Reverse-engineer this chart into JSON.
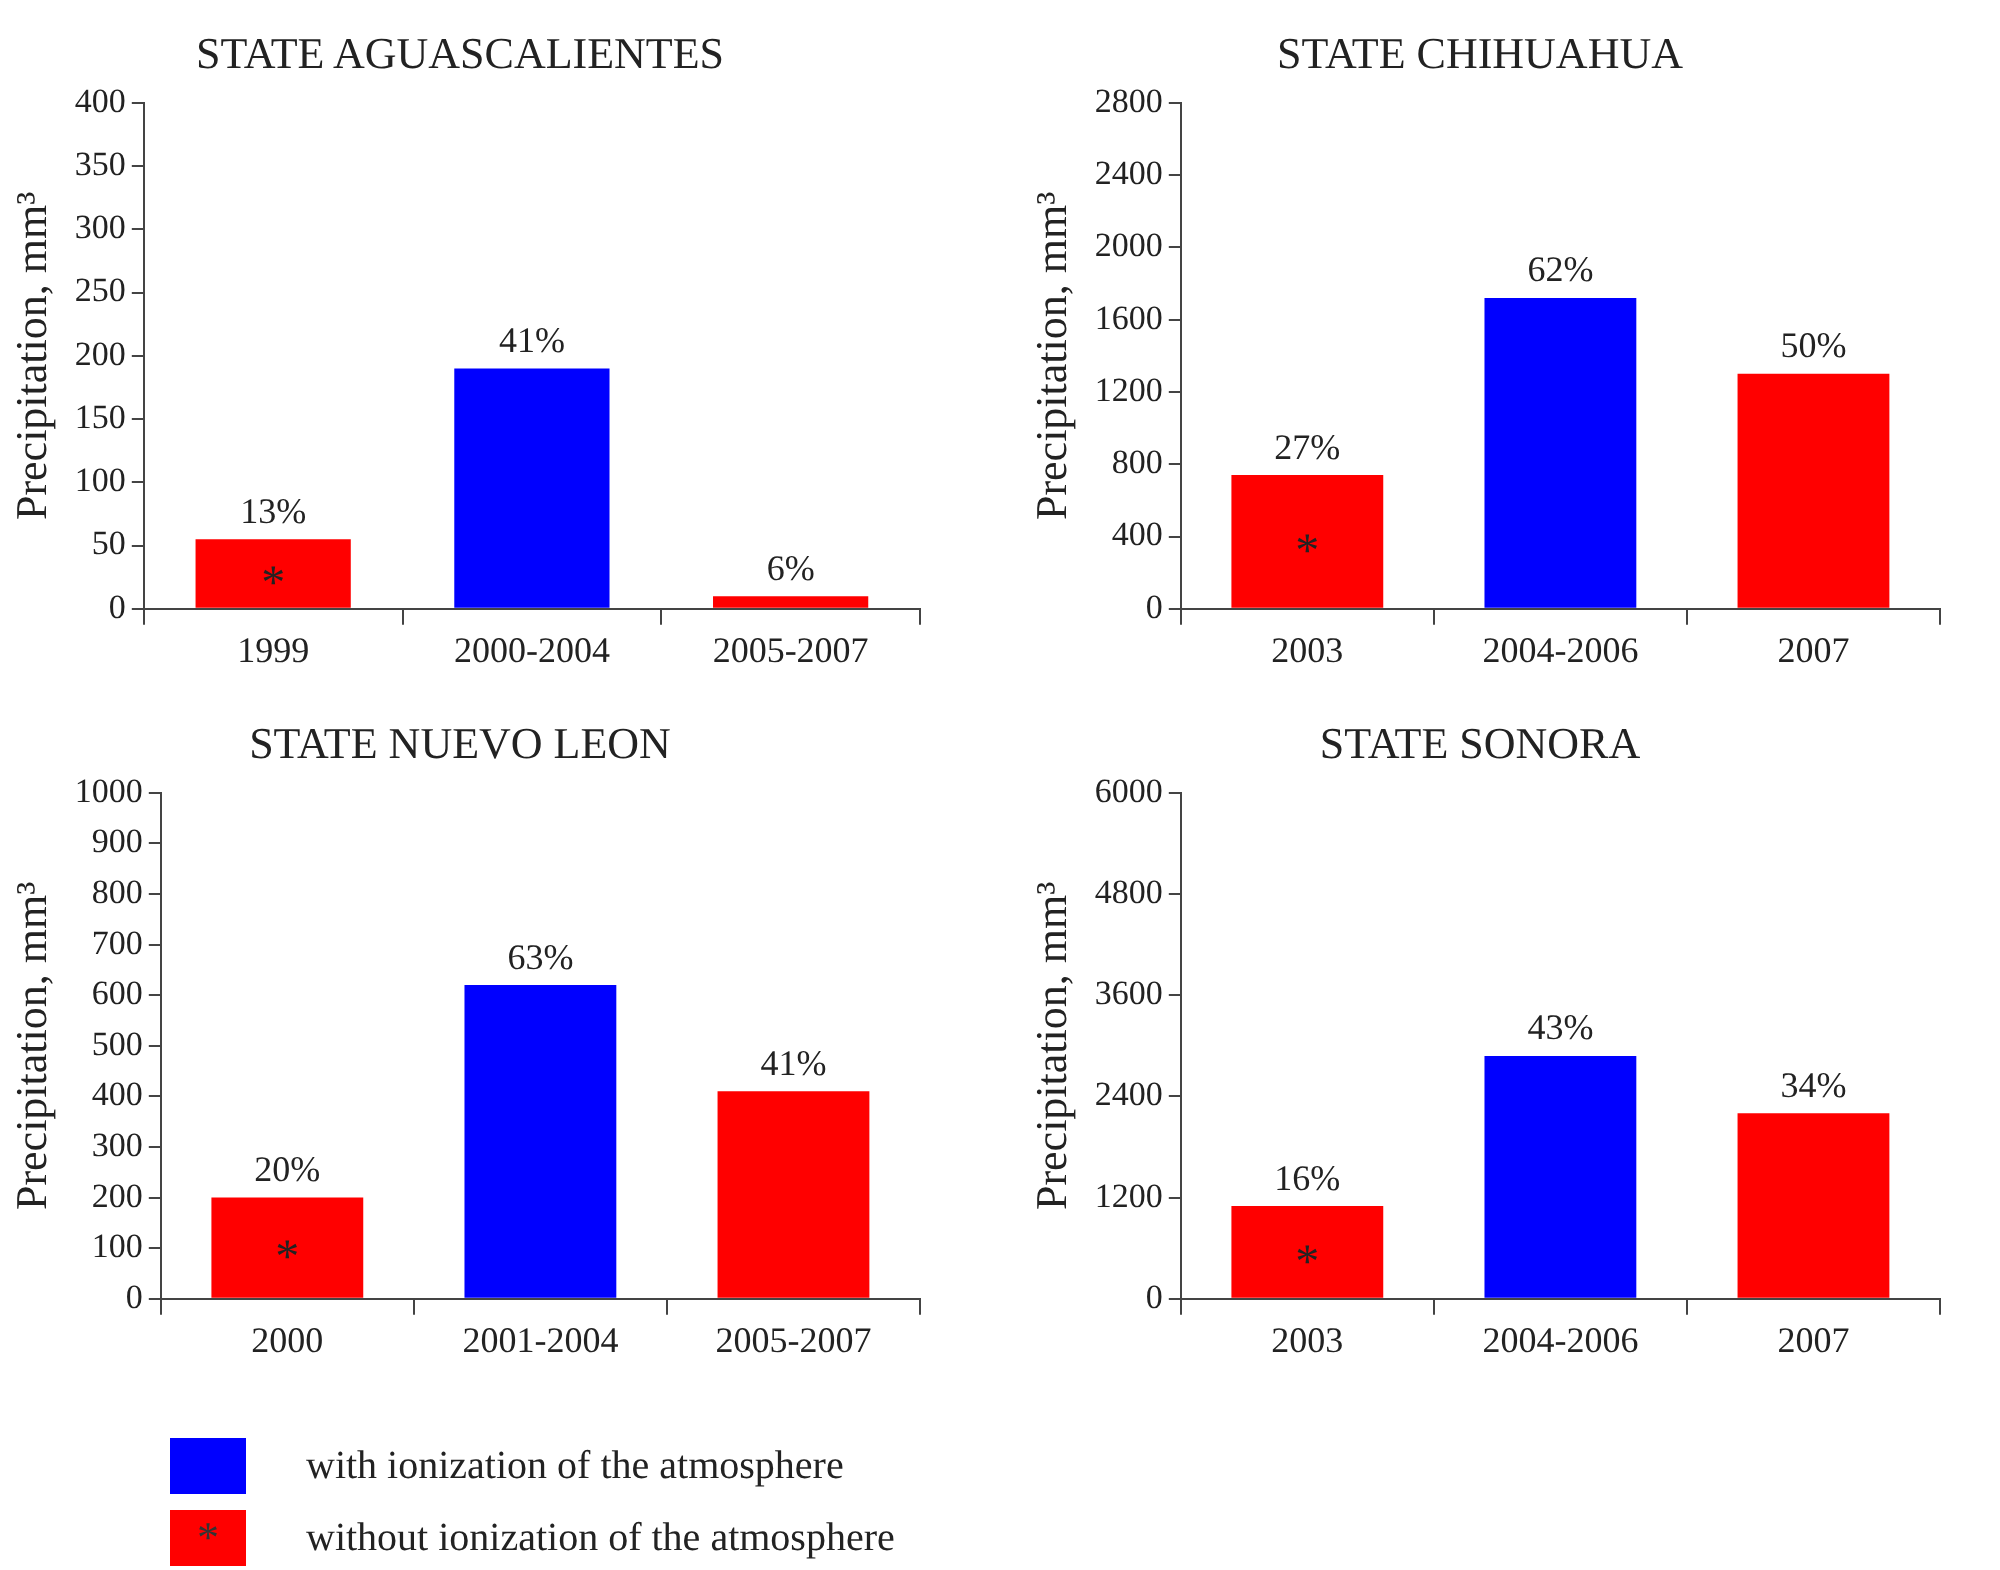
{
  "chart_data": [
    {
      "type": "bar",
      "title": "STATE AGUASCALIENTES",
      "ylabel": "Precipitation, mm³",
      "categories": [
        "1999",
        "2000-2004",
        "2005-2007"
      ],
      "series": [
        {
          "name": "with ionization of the atmosphere",
          "color": "#0000ff",
          "values": [
            null,
            190,
            null
          ]
        },
        {
          "name": "without ionization of the atmosphere",
          "color": "#ff0000",
          "values": [
            55,
            null,
            10
          ]
        }
      ],
      "ylim": [
        0,
        400
      ],
      "yticks": [
        0,
        50,
        100,
        150,
        200,
        250,
        300,
        350,
        400
      ],
      "grid": false,
      "legend": "bottom",
      "annotations": [
        "*",
        {
          "text": "13%",
          "x": "1999",
          "y": 55
        },
        {
          "text": "41%",
          "x": "2000-2004",
          "y": 190
        },
        {
          "text": "6%",
          "x": "2005-2007",
          "y": 10
        }
      ]
    },
    {
      "type": "bar",
      "title": "STATE CHIHUAHUA",
      "ylabel": "Precipitation, mm³",
      "categories": [
        "2003",
        "2004-2006",
        "2007"
      ],
      "series": [
        {
          "color": "#0000ff",
          "values": [
            null,
            1720,
            null
          ]
        },
        {
          "color": "#ff0000",
          "values": [
            740,
            null,
            1300
          ]
        }
      ],
      "ylim": [
        0,
        2800
      ],
      "yticks": [
        0,
        400,
        800,
        1200,
        1600,
        2000,
        2400,
        2800
      ],
      "grid": false,
      "annotations": [
        "*",
        {
          "text": "27%",
          "x": "2003",
          "y": 740
        },
        {
          "text": "62%",
          "x": "2004-2006",
          "y": 1720
        },
        {
          "text": "50%",
          "x": "2007",
          "y": 1300
        }
      ]
    },
    {
      "type": "bar",
      "title": "STATE NUEVO LEON",
      "ylabel": "Precipitation, mm³",
      "categories": [
        "2000",
        "2001-2004",
        "2005-2007"
      ],
      "series": [
        {
          "color": "#0000ff",
          "values": [
            null,
            620,
            null
          ]
        },
        {
          "color": "#ff0000",
          "values": [
            200,
            null,
            410
          ]
        }
      ],
      "ylim": [
        0,
        1000
      ],
      "yticks": [
        0,
        100,
        200,
        300,
        400,
        500,
        600,
        700,
        800,
        900,
        1000
      ],
      "grid": false,
      "annotations": [
        "*",
        {
          "text": "20%",
          "x": "2000",
          "y": 200
        },
        {
          "text": "63%",
          "x": "2001-2004",
          "y": 620
        },
        {
          "text": "41%",
          "x": "2005-2007",
          "y": 410
        }
      ]
    },
    {
      "type": "bar",
      "title": "STATE SONORA",
      "ylabel": "Precipitation, mm³",
      "categories": [
        "2003",
        "2004-2006",
        "2007"
      ],
      "series": [
        {
          "color": "#0000ff",
          "values": [
            null,
            2880,
            null
          ]
        },
        {
          "color": "#ff0000",
          "values": [
            1100,
            null,
            2200
          ]
        }
      ],
      "ylim": [
        0,
        6000
      ],
      "yticks": [
        0,
        1200,
        2400,
        3600,
        4800,
        6000
      ],
      "grid": false,
      "annotations": [
        "*",
        {
          "text": "16%",
          "x": "2003",
          "y": 1100
        },
        {
          "text": "43%",
          "x": "2004-2006",
          "y": 2880
        },
        {
          "text": "34%",
          "x": "2007",
          "y": 2200
        }
      ]
    }
  ]
}
